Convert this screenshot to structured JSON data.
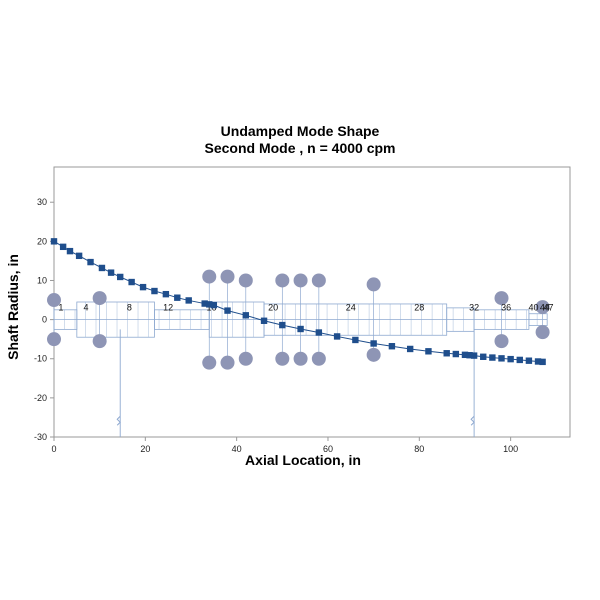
{
  "chart_data": {
    "type": "scatter",
    "title": "Undamped Mode Shape",
    "subtitle": "Second Mode , n = 4000 cpm",
    "xlabel": "Axial Location, in",
    "ylabel": "Shaft Radius, in",
    "xlim": [
      0,
      113
    ],
    "ylim": [
      -30,
      39
    ],
    "xticks": [
      0,
      20,
      40,
      60,
      80,
      100
    ],
    "yticks": [
      -30,
      -20,
      -10,
      0,
      10,
      20,
      30
    ],
    "grid": false,
    "legend": "none",
    "colors": {
      "mode_marker": "#1f4e8c",
      "mode_line": "#1f4e8c",
      "bearing": "#8e95b5",
      "shaft": "#8ea9d0",
      "axis": "#999999"
    },
    "mode_shape": {
      "x": [
        0,
        2,
        3.5,
        5.5,
        8,
        10.5,
        12.5,
        14.5,
        17,
        19.5,
        22,
        24.5,
        27,
        29.5,
        33,
        34,
        35,
        38,
        42,
        46,
        50,
        54,
        58,
        62,
        66,
        70,
        74,
        78,
        82,
        86,
        88,
        90,
        91,
        92,
        94,
        96,
        98,
        100,
        102,
        104,
        106,
        107
      ],
      "y": [
        20,
        18.6,
        17.5,
        16.3,
        14.7,
        13.2,
        12.0,
        10.9,
        9.6,
        8.3,
        7.3,
        6.5,
        5.6,
        4.9,
        4.1,
        3.9,
        3.7,
        2.3,
        1.1,
        -0.3,
        -1.4,
        -2.4,
        -3.3,
        -4.3,
        -5.2,
        -6.1,
        -6.8,
        -7.5,
        -8.1,
        -8.6,
        -8.8,
        -9.0,
        -9.1,
        -9.2,
        -9.5,
        -9.7,
        -9.9,
        -10.1,
        -10.3,
        -10.5,
        -10.7,
        -10.8
      ]
    },
    "bearings_x": [
      0,
      10,
      34,
      38,
      42,
      50,
      54,
      58,
      70,
      98,
      107
    ],
    "shaft_sections": [
      {
        "x0": 0,
        "x1": 5,
        "r": 2.5
      },
      {
        "x0": 5,
        "x1": 22,
        "r": 4.5
      },
      {
        "x0": 22,
        "x1": 34,
        "r": 2.5
      },
      {
        "x0": 34,
        "x1": 46,
        "r": 4.5
      },
      {
        "x0": 46,
        "x1": 86,
        "r": 4
      },
      {
        "x0": 86,
        "x1": 92,
        "r": 3
      },
      {
        "x0": 92,
        "x1": 104,
        "r": 2.5
      },
      {
        "x0": 104,
        "x1": 108,
        "r": 1.5
      }
    ],
    "station_labels": [
      {
        "text": "1",
        "x": 1.5
      },
      {
        "text": "4",
        "x": 7
      },
      {
        "text": "8",
        "x": 16.5
      },
      {
        "text": "12",
        "x": 25
      },
      {
        "text": "16",
        "x": 34.5
      },
      {
        "text": "20",
        "x": 48
      },
      {
        "text": "24",
        "x": 65
      },
      {
        "text": "28",
        "x": 80
      },
      {
        "text": "32",
        "x": 92
      },
      {
        "text": "36",
        "x": 99
      },
      {
        "text": "40",
        "x": 105
      },
      {
        "text": "44",
        "x": 107.5
      },
      {
        "text": "47",
        "x": 108.3
      }
    ],
    "supports_x": [
      14.5,
      92
    ]
  }
}
